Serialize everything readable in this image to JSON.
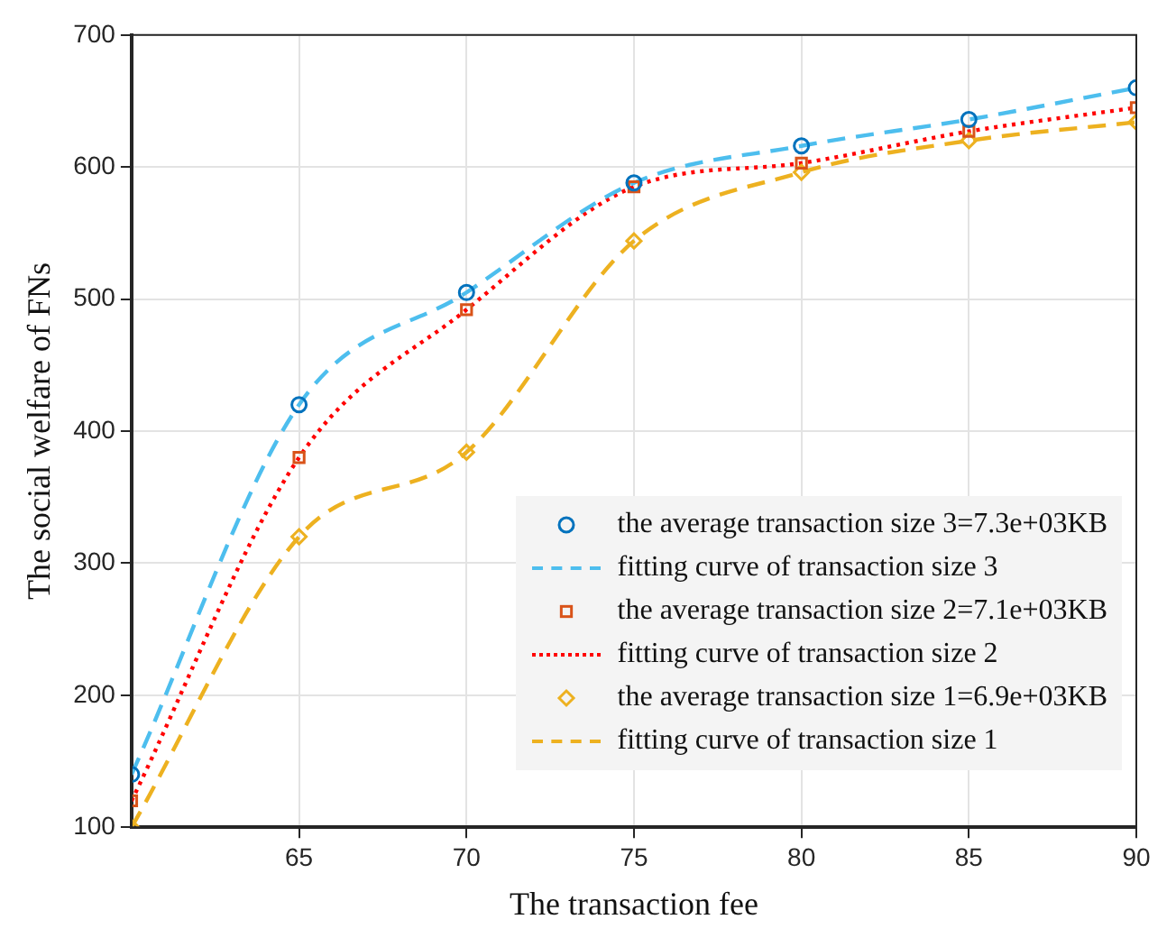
{
  "chart_data": {
    "type": "line",
    "xlabel": "The transaction fee",
    "ylabel": "The social welfare of FNs",
    "xlim": [
      60,
      90
    ],
    "xticks": [
      65,
      70,
      75,
      80,
      85,
      90
    ],
    "ylim": [
      100,
      700
    ],
    "yticks": [
      100,
      200,
      300,
      400,
      500,
      600,
      700
    ],
    "grid": true,
    "legend": "bottom right",
    "series": [
      {
        "type": "scatter",
        "name": "the average transaction size 3=7.3e+03KB",
        "color": "#0072bd",
        "marker": "circle",
        "x": [
          60,
          65,
          70,
          75,
          80,
          85,
          90
        ],
        "values": [
          140,
          420,
          505,
          588,
          616,
          636,
          660
        ]
      },
      {
        "type": "line",
        "name": "fitting curve of transaction size 3",
        "color": "#4dbeee",
        "marker": "none",
        "line_style": "dashed",
        "x": [
          60,
          65,
          70,
          75,
          80,
          85,
          90
        ],
        "values": [
          140,
          420,
          505,
          588,
          616,
          636,
          660
        ]
      },
      {
        "type": "scatter",
        "name": "the average transaction size 2=7.1e+03KB",
        "color": "#d95319",
        "marker": "square",
        "x": [
          60,
          65,
          70,
          75,
          80,
          85,
          90
        ],
        "values": [
          120,
          380,
          492,
          585,
          603,
          627,
          645
        ]
      },
      {
        "type": "line",
        "name": "fitting curve of transaction size 2",
        "color": "#ff0000",
        "marker": "none",
        "line_style": "dotted",
        "x": [
          60,
          65,
          70,
          75,
          80,
          85,
          90
        ],
        "values": [
          120,
          380,
          492,
          585,
          603,
          627,
          645
        ]
      },
      {
        "type": "scatter",
        "name": "the average transaction size 1=6.9e+03KB",
        "color": "#edb120",
        "marker": "diamond",
        "x": [
          60,
          65,
          70,
          75,
          80,
          85,
          90
        ],
        "values": [
          100,
          320,
          384,
          544,
          596,
          620,
          634
        ]
      },
      {
        "type": "line",
        "name": "fitting curve of transaction size 1",
        "color": "#edb120",
        "marker": "none",
        "line_style": "dashed",
        "x": [
          60,
          65,
          70,
          75,
          80,
          85,
          90
        ],
        "values": [
          100,
          320,
          384,
          544,
          596,
          620,
          634
        ]
      }
    ]
  }
}
